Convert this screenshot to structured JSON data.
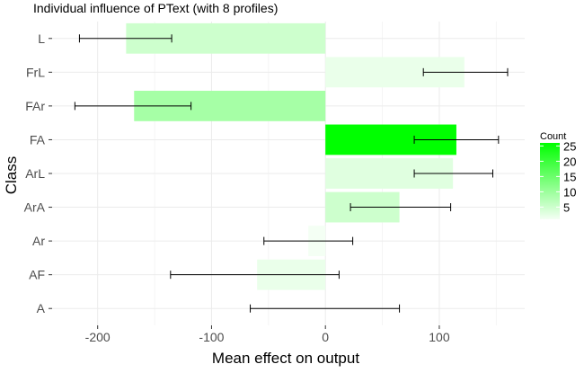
{
  "chart_data": {
    "type": "bar",
    "orientation": "horizontal",
    "title": "Individual influence of PText (with 8 profiles)",
    "xlabel": "Mean effect on output",
    "ylabel": "Class",
    "xlim": [
      -240,
      175
    ],
    "x_ticks": [
      -200,
      -100,
      0,
      100
    ],
    "categories": [
      "A",
      "AF",
      "Ar",
      "ArA",
      "ArL",
      "FA",
      "FAr",
      "FrL",
      "L"
    ],
    "values": [
      0,
      -60,
      -15,
      65,
      112,
      115,
      -168,
      122,
      -175
    ],
    "err_low": [
      -66,
      -136,
      -54,
      22,
      78,
      78,
      -220,
      86,
      -216
    ],
    "err_high": [
      65,
      12,
      24,
      110,
      147,
      152,
      -118,
      160,
      -135
    ],
    "counts": [
      1,
      2,
      1,
      5,
      3,
      26,
      9,
      2,
      5
    ],
    "grid": true,
    "legend": {
      "title": "Count",
      "placement": "right",
      "ticks": [
        5,
        10,
        15,
        20,
        25
      ],
      "color_low": "#f4fff4",
      "color_high": "#00ff00",
      "range": [
        1,
        26
      ]
    },
    "bar_fill_colors": {
      "low": "#f4fff4",
      "high": "#00ff00"
    },
    "colors": {
      "panel_bg": "#ffffff",
      "grid": "#ebebeb",
      "errorbar": "#000000",
      "axis_text": "#4d4d4d"
    }
  }
}
